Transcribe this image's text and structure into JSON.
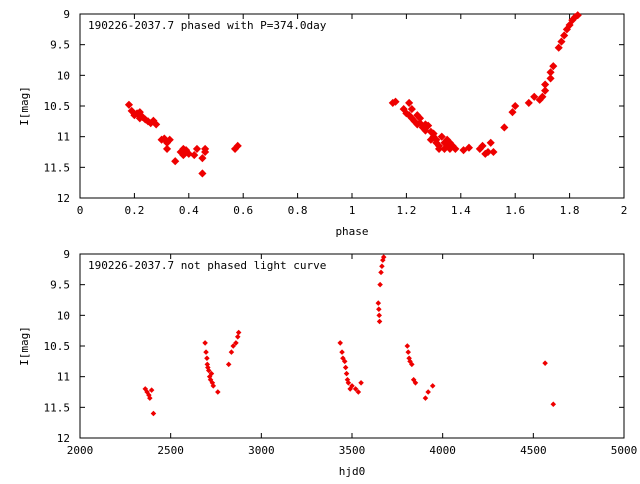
{
  "colors": {
    "points": "#ee0000",
    "axes": "#000000"
  },
  "chart_data": [
    {
      "type": "scatter",
      "title": "190226-2037.7 phased with P=374.0day",
      "xlabel": "phase",
      "ylabel": "I[mag]",
      "xlim": [
        0,
        2
      ],
      "ylim": [
        12,
        9
      ],
      "y_inverted": true,
      "grid": false,
      "xticks": [
        "0",
        "0.2",
        "0.4",
        "0.6",
        "0.8",
        "1",
        "1.2",
        "1.4",
        "1.6",
        "1.8",
        "2"
      ],
      "yticks": [
        "9",
        "9.5",
        "10",
        "10.5",
        "11",
        "11.5",
        "12"
      ],
      "xtick_values": [
        0,
        0.2,
        0.4,
        0.6,
        0.8,
        1.0,
        1.2,
        1.4,
        1.6,
        1.8,
        2.0
      ],
      "ytick_values": [
        9,
        9.5,
        10,
        10.5,
        11,
        11.5,
        12
      ],
      "series": [
        {
          "points": [
            [
              0.18,
              10.48
            ],
            [
              0.19,
              10.58
            ],
            [
              0.2,
              10.65
            ],
            [
              0.21,
              10.62
            ],
            [
              0.22,
              10.6
            ],
            [
              0.22,
              10.7
            ],
            [
              0.23,
              10.68
            ],
            [
              0.24,
              10.72
            ],
            [
              0.25,
              10.75
            ],
            [
              0.26,
              10.78
            ],
            [
              0.27,
              10.74
            ],
            [
              0.28,
              10.8
            ],
            [
              0.3,
              11.05
            ],
            [
              0.31,
              11.03
            ],
            [
              0.32,
              11.1
            ],
            [
              0.32,
              11.2
            ],
            [
              0.33,
              11.05
            ],
            [
              0.35,
              11.4
            ],
            [
              0.37,
              11.25
            ],
            [
              0.38,
              11.2
            ],
            [
              0.38,
              11.3
            ],
            [
              0.39,
              11.22
            ],
            [
              0.4,
              11.28
            ],
            [
              0.42,
              11.3
            ],
            [
              0.43,
              11.2
            ],
            [
              0.45,
              11.35
            ],
            [
              0.45,
              11.6
            ],
            [
              0.46,
              11.2
            ],
            [
              0.46,
              11.25
            ],
            [
              0.57,
              11.2
            ],
            [
              0.58,
              11.15
            ],
            [
              1.15,
              10.45
            ],
            [
              1.16,
              10.43
            ],
            [
              1.19,
              10.55
            ],
            [
              1.2,
              10.62
            ],
            [
              1.21,
              10.45
            ],
            [
              1.21,
              10.65
            ],
            [
              1.22,
              10.7
            ],
            [
              1.22,
              10.55
            ],
            [
              1.23,
              10.75
            ],
            [
              1.24,
              10.65
            ],
            [
              1.24,
              10.8
            ],
            [
              1.25,
              10.78
            ],
            [
              1.25,
              10.7
            ],
            [
              1.26,
              10.85
            ],
            [
              1.27,
              10.9
            ],
            [
              1.27,
              10.8
            ],
            [
              1.28,
              10.82
            ],
            [
              1.29,
              10.92
            ],
            [
              1.29,
              11.05
            ],
            [
              1.3,
              11.0
            ],
            [
              1.3,
              10.95
            ],
            [
              1.31,
              11.1
            ],
            [
              1.31,
              11.05
            ],
            [
              1.32,
              11.15
            ],
            [
              1.32,
              11.2
            ],
            [
              1.33,
              11.0
            ],
            [
              1.34,
              11.1
            ],
            [
              1.34,
              11.2
            ],
            [
              1.35,
              11.15
            ],
            [
              1.35,
              11.05
            ],
            [
              1.36,
              11.2
            ],
            [
              1.36,
              11.1
            ],
            [
              1.37,
              11.15
            ],
            [
              1.38,
              11.2
            ],
            [
              1.41,
              11.22
            ],
            [
              1.43,
              11.18
            ],
            [
              1.47,
              11.2
            ],
            [
              1.48,
              11.15
            ],
            [
              1.49,
              11.28
            ],
            [
              1.5,
              11.25
            ],
            [
              1.51,
              11.1
            ],
            [
              1.52,
              11.25
            ],
            [
              1.56,
              10.85
            ],
            [
              1.59,
              10.6
            ],
            [
              1.6,
              10.5
            ],
            [
              1.65,
              10.45
            ],
            [
              1.67,
              10.35
            ],
            [
              1.69,
              10.4
            ],
            [
              1.7,
              10.35
            ],
            [
              1.71,
              10.25
            ],
            [
              1.71,
              10.15
            ],
            [
              1.73,
              10.05
            ],
            [
              1.73,
              9.95
            ],
            [
              1.74,
              9.85
            ],
            [
              1.76,
              9.55
            ],
            [
              1.77,
              9.45
            ],
            [
              1.78,
              9.35
            ],
            [
              1.79,
              9.25
            ],
            [
              1.8,
              9.18
            ],
            [
              1.81,
              9.1
            ],
            [
              1.82,
              9.05
            ],
            [
              1.83,
              9.02
            ]
          ]
        }
      ]
    },
    {
      "type": "scatter",
      "title": "190226-2037.7 not phased light curve",
      "xlabel": "hjd0",
      "ylabel": "I[mag]",
      "xlim": [
        2000,
        5000
      ],
      "ylim": [
        12,
        9
      ],
      "y_inverted": true,
      "grid": false,
      "xticks": [
        "2000",
        "2500",
        "3000",
        "3500",
        "4000",
        "4500",
        "5000"
      ],
      "yticks": [
        "9",
        "9.5",
        "10",
        "10.5",
        "11",
        "11.5",
        "12"
      ],
      "xtick_values": [
        2000,
        2500,
        3000,
        3500,
        4000,
        4500,
        5000
      ],
      "ytick_values": [
        9,
        9.5,
        10,
        10.5,
        11,
        11.5,
        12
      ],
      "series": [
        {
          "points": [
            [
              2360,
              11.2
            ],
            [
              2370,
              11.25
            ],
            [
              2380,
              11.3
            ],
            [
              2385,
              11.35
            ],
            [
              2395,
              11.22
            ],
            [
              2405,
              11.6
            ],
            [
              2690,
              10.45
            ],
            [
              2695,
              10.6
            ],
            [
              2700,
              10.7
            ],
            [
              2702,
              10.8
            ],
            [
              2705,
              10.85
            ],
            [
              2710,
              10.9
            ],
            [
              2715,
              11.0
            ],
            [
              2720,
              11.05
            ],
            [
              2725,
              10.95
            ],
            [
              2730,
              11.1
            ],
            [
              2735,
              11.15
            ],
            [
              2760,
              11.25
            ],
            [
              2820,
              10.8
            ],
            [
              2835,
              10.6
            ],
            [
              2845,
              10.5
            ],
            [
              2860,
              10.45
            ],
            [
              2870,
              10.35
            ],
            [
              2875,
              10.28
            ],
            [
              3435,
              10.45
            ],
            [
              3445,
              10.6
            ],
            [
              3450,
              10.7
            ],
            [
              3460,
              10.75
            ],
            [
              3465,
              10.85
            ],
            [
              3470,
              10.95
            ],
            [
              3475,
              11.05
            ],
            [
              3480,
              11.1
            ],
            [
              3490,
              11.2
            ],
            [
              3500,
              11.15
            ],
            [
              3520,
              11.2
            ],
            [
              3535,
              11.25
            ],
            [
              3550,
              11.1
            ],
            [
              3645,
              9.8
            ],
            [
              3648,
              9.9
            ],
            [
              3650,
              10.0
            ],
            [
              3652,
              10.1
            ],
            [
              3655,
              9.5
            ],
            [
              3660,
              9.3
            ],
            [
              3665,
              9.2
            ],
            [
              3670,
              9.1
            ],
            [
              3675,
              9.05
            ],
            [
              3805,
              10.5
            ],
            [
              3810,
              10.6
            ],
            [
              3815,
              10.7
            ],
            [
              3820,
              10.75
            ],
            [
              3830,
              10.8
            ],
            [
              3840,
              11.05
            ],
            [
              3850,
              11.1
            ],
            [
              3905,
              11.35
            ],
            [
              3920,
              11.25
            ],
            [
              3945,
              11.15
            ],
            [
              4565,
              10.78
            ],
            [
              4610,
              11.45
            ]
          ]
        }
      ]
    }
  ]
}
